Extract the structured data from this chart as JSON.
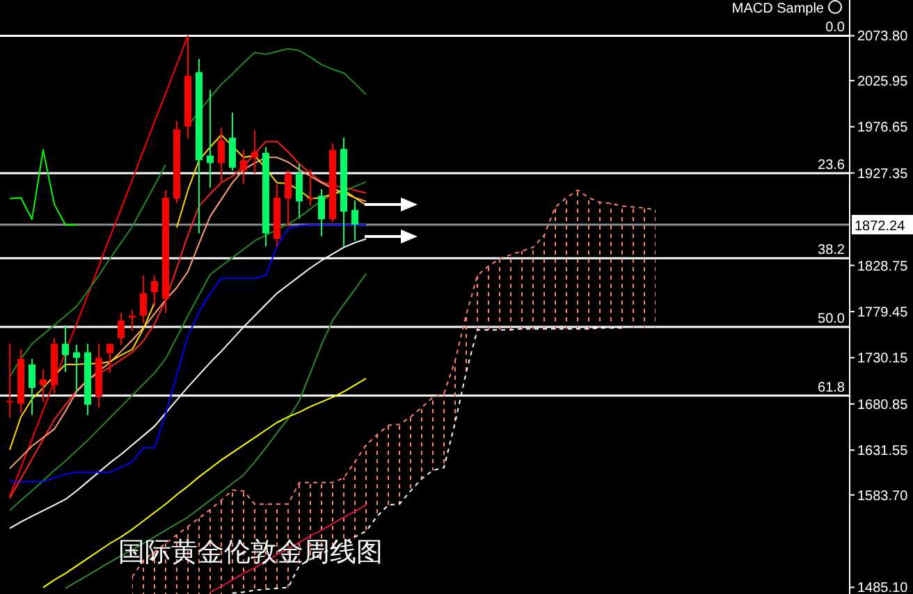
{
  "chart_data": {
    "type": "candlestick",
    "title": "国际黄金伦敦金周线图",
    "annotations": [
      "MACD Sample",
      {
        "text": "0.0",
        "y": 2073.8
      },
      {
        "text": "23.6",
        "y": 1927.1
      },
      {
        "text": "38.2",
        "y": 1836.3
      },
      {
        "text": "50.0",
        "y": 1763
      },
      {
        "text": "61.8",
        "y": 1689.7
      }
    ],
    "categories": [
      null,
      null,
      null,
      null,
      null,
      null,
      null,
      null,
      null,
      null,
      null,
      null,
      null,
      null,
      null,
      null,
      null,
      null,
      null,
      null,
      null,
      null,
      null,
      null,
      null,
      null,
      null,
      null,
      null,
      null,
      null,
      null,
      null,
      null,
      null,
      null,
      null,
      null,
      null,
      null,
      null,
      null,
      null,
      null,
      null,
      null,
      null,
      null,
      null,
      null,
      null,
      null,
      null,
      null,
      null,
      null,
      null,
      null,
      null,
      null,
      null,
      null,
      null,
      null,
      null,
      null,
      null,
      null,
      null,
      null,
      null,
      null,
      null,
      null,
      null,
      null
    ],
    "ohlc": [
      [
        1683,
        1745,
        1666,
        1684
      ],
      [
        1681,
        1739,
        1671,
        1729
      ],
      [
        1723,
        1729,
        1669,
        1698
      ],
      [
        1701,
        1718,
        1683,
        1707
      ],
      [
        1701,
        1751,
        1692,
        1745
      ],
      [
        1745,
        1765,
        1715,
        1733
      ],
      [
        1736,
        1744,
        1693,
        1730
      ],
      [
        1736,
        1745,
        1669,
        1680
      ],
      [
        1689,
        1745,
        1677,
        1730
      ],
      [
        1735,
        1745,
        1714,
        1745
      ],
      [
        1751,
        1778,
        1744,
        1770
      ],
      [
        1773,
        1781,
        1759,
        1775
      ],
      [
        1775,
        1818,
        1767,
        1799
      ],
      [
        1800,
        1818,
        1785,
        1812
      ],
      [
        1793,
        1909,
        1778,
        1901
      ],
      [
        1900,
        1983,
        1895,
        1974
      ],
      [
        1977,
        2073.8,
        1964,
        2031
      ],
      [
        2035,
        2049,
        1863,
        1941
      ],
      [
        1946,
        2016,
        1912,
        1938
      ],
      [
        1938,
        1976,
        1916,
        1962
      ],
      [
        1965,
        1992,
        1930,
        1933
      ],
      [
        1930,
        1952,
        1916,
        1941
      ],
      [
        1944,
        1973,
        1927,
        1950
      ],
      [
        1949,
        1955,
        1849,
        1863
      ],
      [
        1857,
        1915,
        1849,
        1901
      ],
      [
        1900,
        1931,
        1870,
        1927
      ],
      [
        1927,
        1937,
        1879,
        1897
      ],
      [
        1900,
        1931,
        1892,
        1901
      ],
      [
        1903,
        1910,
        1860,
        1878
      ],
      [
        1878,
        1959,
        1875,
        1952
      ],
      [
        1953,
        1965,
        1849,
        1886
      ],
      [
        1888,
        1898,
        1855,
        1872.24
      ],
      null,
      null,
      null,
      null,
      null,
      null,
      null,
      null,
      null,
      null,
      null,
      null,
      null,
      null,
      null,
      null,
      null,
      null,
      null,
      null,
      null,
      null,
      null,
      null,
      null,
      null,
      null,
      null,
      null,
      null,
      null,
      null,
      null,
      null,
      null,
      null,
      null,
      null,
      null,
      null,
      null,
      null,
      null,
      null
    ],
    "colors": [
      "#ff0000",
      "#ff0000",
      "#00ff66",
      "#ff0000",
      "#ff0000",
      "#00ff66",
      "#00ff66",
      "#00ff66",
      "#ff0000",
      "#ff0000",
      "#ff0000",
      "#ff0000",
      "#ff0000",
      "#ff0000",
      "#ff0000",
      "#ff0000",
      "#ff0000",
      "#00ff66",
      "#00ff66",
      "#ff0000",
      "#00ff66",
      "#ff0000",
      "#ff0000",
      "#00ff66",
      "#ff0000",
      "#ff0000",
      "#00ff66",
      "#ff0000",
      "#00ff66",
      "#ff0000",
      "#00ff66",
      "#00ff66",
      null,
      null,
      null,
      null,
      null,
      null,
      null,
      null,
      null,
      null,
      null,
      null,
      null,
      null,
      null,
      null,
      null,
      null,
      null,
      null,
      null,
      null,
      null,
      null,
      null,
      null,
      null,
      null,
      null,
      null,
      null,
      null,
      null,
      null,
      null,
      null,
      null,
      null,
      null,
      null,
      null,
      null,
      null,
      null
    ],
    "series": [
      {
        "type": "line",
        "color": "#fa8072",
        "line_style": "dashed",
        "values": [
          null,
          null,
          null,
          null,
          null,
          null,
          null,
          null,
          null,
          null,
          null,
          1496,
          1514,
          1523,
          1532,
          1541,
          1550,
          1559,
          1568,
          1578,
          1589,
          1588,
          1574,
          1574,
          1574,
          1574,
          1597,
          1597,
          1597,
          1597,
          1602,
          1619,
          1637,
          1648,
          1658,
          1659,
          1667,
          1677,
          1688,
          1692,
          1727,
          1776,
          1818,
          1828,
          1836,
          1840,
          1844,
          1848,
          1861,
          1891,
          1901,
          1909,
          1901,
          1896,
          1895,
          1892,
          1891,
          1890,
          1888,
          null,
          null,
          null,
          null,
          null,
          null,
          null,
          null,
          null,
          null,
          null,
          null,
          null,
          null,
          null,
          null,
          null
        ],
        "upper": [
          null,
          null,
          null,
          null,
          null,
          null,
          null,
          null,
          null,
          null,
          null,
          1496,
          1514,
          1523,
          1532,
          1541,
          1550,
          1559,
          1568,
          1578,
          1589,
          1588,
          1574,
          1574,
          1574,
          1574,
          1597,
          1597,
          1597,
          1597,
          1602,
          1619,
          1637,
          1648,
          1658,
          1659,
          1667,
          1677,
          1688,
          1692,
          1727,
          1776,
          1818,
          1828,
          1836,
          1840,
          1844,
          1848,
          1861,
          1891,
          1901,
          1909,
          1901,
          1896,
          1895,
          1892,
          1891,
          1890,
          1888,
          null,
          null,
          null,
          null,
          null,
          null,
          null,
          null,
          null,
          null,
          null,
          null,
          null,
          null,
          null,
          null,
          null
        ],
        "lower": [
          null,
          null,
          null,
          null,
          null,
          null,
          null,
          null,
          null,
          null,
          null,
          1478,
          1478,
          1478,
          1478,
          1478,
          1478,
          1478,
          1478,
          1478,
          1479,
          1480,
          1482,
          1483,
          1484,
          1485,
          1508,
          1515,
          1521,
          1527,
          1533,
          1539,
          1545,
          1561,
          1573,
          1574,
          1588,
          1601,
          1610,
          1613,
          1661,
          1715,
          1760,
          1760,
          1760,
          1760,
          1761,
          1761,
          1761,
          1761,
          1761,
          1761,
          1761,
          1762,
          1762,
          1762,
          1762,
          1762,
          1762,
          null,
          null,
          null,
          null,
          null,
          null,
          null,
          null,
          null,
          null,
          null,
          null,
          null,
          null,
          null,
          null,
          null
        ]
      },
      {
        "type": "line",
        "color": "#ffffff",
        "line_style": "dashed",
        "values": [
          null,
          null,
          null,
          null,
          null,
          null,
          null,
          null,
          null,
          null,
          null,
          null,
          null,
          null,
          null,
          null,
          null,
          null,
          null,
          null,
          1479,
          1480,
          1482,
          1483,
          1484,
          1485,
          1508,
          1515,
          1521,
          1527,
          1533,
          1539,
          1545,
          1561,
          1573,
          1574,
          1588,
          1601,
          1610,
          1613,
          1661,
          1715,
          1760,
          1760,
          1760,
          1760,
          1761,
          1761,
          1761,
          1761,
          1761,
          1761,
          1761,
          1762,
          1762,
          1762,
          null,
          null,
          null,
          null,
          null,
          null,
          null,
          null,
          null,
          null,
          null,
          null,
          null,
          null,
          null,
          null,
          null,
          null,
          null,
          null
        ]
      },
      {
        "type": "line",
        "color": "#ff0000",
        "values": [
          1582,
          1613,
          1643,
          1674,
          1705,
          1736,
          1766,
          1797,
          1828,
          1859,
          1889,
          1920,
          1951,
          1982,
          2012,
          2043,
          2074,
          null,
          null,
          null,
          null,
          null,
          null,
          null,
          null,
          null,
          null,
          null,
          null,
          null,
          null,
          null,
          null,
          null,
          null,
          null,
          null,
          null,
          null,
          null,
          null,
          null,
          null,
          null,
          null,
          null,
          null,
          null,
          null,
          null,
          null,
          null,
          null,
          null,
          null,
          null,
          null,
          null,
          null,
          null,
          null,
          null,
          null,
          null,
          null,
          null,
          null,
          null,
          null,
          null,
          null,
          null,
          null,
          null,
          null,
          null
        ]
      },
      {
        "type": "line",
        "color": "#dc143c",
        "values": [
          null,
          null,
          null,
          null,
          null,
          null,
          null,
          null,
          null,
          null,
          null,
          null,
          null,
          null,
          null,
          null,
          null,
          null,
          1480,
          1486,
          1493,
          1500,
          1506,
          1513,
          1520,
          1526,
          1533,
          1540,
          1546,
          1553,
          1560,
          1566,
          1573,
          null,
          null,
          null,
          null,
          null,
          null,
          null,
          null,
          null,
          null,
          null,
          null,
          null,
          null,
          null,
          null,
          null,
          null,
          null,
          null,
          null,
          null,
          null,
          null,
          null,
          null,
          null,
          null,
          null,
          null,
          null,
          null,
          null,
          null,
          null,
          null,
          null,
          null,
          null,
          null,
          null,
          null,
          null
        ]
      },
      {
        "type": "line",
        "color": "#228b22",
        "values": [
          1710,
          1729,
          1745,
          1755,
          1765,
          1775,
          1785,
          1801,
          1818,
          1836,
          1853,
          1870,
          1892,
          1914,
          1936,
          null,
          1978,
          1993,
          2008,
          2022,
          2033,
          2045,
          2056,
          2054,
          2057,
          2060,
          2058,
          2051,
          2043,
          2038,
          2034,
          2023,
          2011,
          null,
          null,
          null,
          null,
          null,
          null,
          null,
          null,
          null,
          null,
          null,
          null,
          null,
          null,
          null,
          null,
          null,
          null,
          null,
          null,
          null,
          null,
          null,
          null,
          null,
          null,
          null,
          null,
          null,
          null,
          null,
          null,
          null,
          null,
          null,
          null,
          null,
          null,
          null,
          null,
          null,
          null,
          null
        ]
      },
      {
        "type": "line",
        "color": "#228b22",
        "values": [
          1567,
          1578,
          1588,
          1599,
          1610,
          1620,
          1631,
          1642,
          1654,
          1666,
          1678,
          1690,
          1702,
          1714,
          1729,
          1752,
          1775,
          1797,
          1819,
          1828,
          1837,
          1846,
          1855,
          1861,
          1867,
          1873,
          1880,
          1889,
          1898,
          1904,
          1908,
          1913,
          1918,
          null,
          null,
          null,
          null,
          null,
          null,
          null,
          null,
          null,
          null,
          null,
          null,
          null,
          null,
          null,
          null,
          null,
          null,
          null,
          null,
          null,
          null,
          null,
          null,
          null,
          null,
          null,
          null,
          null,
          null,
          null,
          null,
          null,
          null,
          null,
          null,
          null,
          null,
          null,
          null,
          null,
          null,
          null
        ]
      },
      {
        "type": "line",
        "color": "#2e8b2e",
        "values": [
          null,
          null,
          null,
          null,
          null,
          1484,
          1491,
          1498,
          1505,
          1512,
          1519,
          1525,
          1532,
          1539,
          1546,
          1553,
          1560,
          1569,
          1578,
          1587,
          1596,
          1605,
          1619,
          1634,
          1650,
          1665,
          1684,
          1714,
          1744,
          1770,
          1787,
          1803,
          1820,
          null,
          null,
          null,
          null,
          null,
          null,
          null,
          null,
          null,
          null,
          null,
          null,
          null,
          null,
          null,
          null,
          null,
          null,
          null,
          null,
          null,
          null,
          null,
          null,
          null,
          null,
          null,
          null,
          null,
          null,
          null,
          null,
          null,
          null,
          null,
          null,
          null,
          null,
          null,
          null,
          null,
          null,
          null
        ]
      },
      {
        "type": "line",
        "color": "#ffff00",
        "values": [
          null,
          null,
          null,
          1485,
          1493,
          1500,
          1508,
          1516,
          1524,
          1532,
          1539,
          1547,
          1556,
          1565,
          1574,
          1584,
          1593,
          1603,
          1612,
          1621,
          1629,
          1637,
          1645,
          1653,
          1661,
          1667,
          1672,
          1678,
          1683,
          1688,
          1694,
          1701,
          1708,
          null,
          null,
          null,
          null,
          null,
          null,
          null,
          null,
          null,
          null,
          null,
          null,
          null,
          null,
          null,
          null,
          null,
          null,
          null,
          null,
          null,
          null,
          null,
          null,
          null,
          null,
          null,
          null,
          null,
          null,
          null,
          null,
          null,
          null,
          null,
          null,
          null,
          null,
          null,
          null,
          null,
          null,
          null
        ]
      },
      {
        "type": "line",
        "color": "#ffffff",
        "values": [
          1548,
          1555,
          1561,
          1567,
          1573,
          1579,
          1588,
          1598,
          1608,
          1618,
          1627,
          1637,
          1647,
          1657,
          1671,
          1685,
          1699,
          1712,
          1725,
          1737,
          1750,
          1763,
          1775,
          1787,
          1799,
          1808,
          1817,
          1826,
          1834,
          1841,
          1848,
          1853,
          1857,
          null,
          null,
          null,
          null,
          null,
          null,
          null,
          null,
          null,
          null,
          null,
          null,
          null,
          null,
          null,
          null,
          null,
          null,
          null,
          null,
          null,
          null,
          null,
          null,
          null,
          null,
          null,
          null,
          null,
          null,
          null,
          null,
          null,
          null,
          null,
          null,
          null,
          null,
          null,
          null,
          null,
          null,
          null
        ]
      },
      {
        "type": "line",
        "color": "#0000ff",
        "values": [
          1598,
          1598,
          1598,
          1598,
          1602,
          1606,
          1608,
          1608,
          1608,
          1608,
          1613,
          1619,
          1634,
          1634,
          1670,
          1712,
          1753,
          1779,
          1799,
          1815,
          1815,
          1815,
          1815,
          1818,
          1849,
          1868,
          1871,
          1872,
          1872,
          1872,
          1872,
          1872,
          1872,
          null,
          null,
          null,
          null,
          null,
          null,
          null,
          null,
          null,
          null,
          null,
          null,
          null,
          null,
          null,
          null,
          null,
          null,
          null,
          null,
          null,
          null,
          null,
          null,
          null,
          null,
          null,
          null,
          null,
          null,
          null,
          null,
          null,
          null,
          null,
          null,
          null,
          null,
          null,
          null,
          null,
          null,
          null
        ]
      },
      {
        "type": "line",
        "color": "#ff2020",
        "values": [
          1580,
          1601,
          1622,
          1643,
          1664,
          1680,
          1695,
          1707,
          1713,
          1720,
          1728,
          1736,
          1748,
          1766,
          1792,
          1826,
          1861,
          1892,
          1905,
          1917,
          1924,
          1934,
          1948,
          1961,
          1961,
          1950,
          1937,
          1927,
          1918,
          1914,
          1912,
          1909,
          1906,
          null,
          null,
          null,
          null,
          null,
          null,
          null,
          null,
          null,
          null,
          null,
          null,
          null,
          null,
          null,
          null,
          null,
          null,
          null,
          null,
          null,
          null,
          null,
          null,
          null,
          null,
          null,
          null,
          null,
          null,
          null,
          null,
          null,
          null,
          null,
          null,
          null,
          null,
          null,
          null,
          null,
          null,
          null
        ]
      },
      {
        "type": "line",
        "color": "#ffa07a",
        "values": [
          1612,
          1624,
          1636,
          1645,
          1654,
          1673,
          1694,
          1706,
          1716,
          1725,
          1737,
          1749,
          1762,
          1777,
          1792,
          1805,
          1822,
          1852,
          1881,
          1899,
          1917,
          1931,
          1938,
          1944,
          1944,
          1939,
          1931,
          1924,
          1917,
          1911,
          1906,
          1901,
          1897,
          null,
          null,
          null,
          null,
          null,
          null,
          null,
          null,
          null,
          null,
          null,
          null,
          null,
          null,
          null,
          null,
          null,
          null,
          null,
          null,
          null,
          null,
          null,
          null,
          null,
          null,
          null,
          null,
          null,
          null,
          null,
          null,
          null,
          null,
          null,
          null,
          null,
          null,
          null,
          null,
          null,
          null,
          null
        ]
      },
      {
        "type": "line",
        "color": "#ffd700",
        "values": [
          1632,
          1667,
          1686,
          1698,
          1711,
          1723,
          1723,
          1724,
          1724,
          1726,
          1733,
          1739,
          1761,
          1789,
          null,
          1869,
          1909,
          1941,
          1955,
          1968,
          1956,
          1944,
          1946,
          1932,
          1917,
          1916,
          1909,
          1900,
          1901,
          1905,
          1909,
          1901,
          1893,
          null,
          null,
          null,
          null,
          null,
          null,
          null,
          null,
          null,
          null,
          null,
          null,
          null,
          null,
          null,
          null,
          null,
          null,
          null,
          null,
          null,
          null,
          null,
          null,
          null,
          null,
          null,
          null,
          null,
          null,
          null,
          null,
          null,
          null,
          null,
          null,
          null,
          null,
          null,
          null,
          null,
          null,
          null
        ]
      },
      {
        "type": "line",
        "color": "#00ff00",
        "values": [
          1900,
          1901,
          1878,
          1952,
          1894,
          1872,
          1872,
          null,
          null,
          null,
          null,
          null,
          null,
          null,
          null,
          null,
          null,
          null,
          null,
          null,
          null,
          null,
          null,
          null,
          null,
          null,
          null,
          null,
          null,
          null,
          null,
          null,
          null,
          null,
          null,
          null,
          null,
          null,
          null,
          null,
          null,
          null,
          null,
          null,
          null,
          null,
          null,
          null,
          null,
          null,
          null,
          null,
          null,
          null,
          null,
          null,
          null,
          null,
          null,
          null,
          null,
          null,
          null,
          null,
          null,
          null,
          null,
          null,
          null,
          null,
          null,
          null,
          null,
          null,
          null,
          null
        ]
      }
    ],
    "ref_lines": [
      {
        "axis": "y",
        "value": 2073.8,
        "color": "#ffffff"
      },
      {
        "axis": "y",
        "value": 1927.1,
        "color": "#ffffff"
      },
      {
        "axis": "y",
        "value": 1836.3,
        "color": "#ffffff"
      },
      {
        "axis": "y",
        "value": 1763,
        "color": "#ffffff"
      },
      {
        "axis": "y",
        "value": 1689.7,
        "color": "#ffffff"
      },
      {
        "axis": "y",
        "value": 1872.24,
        "label": "1872.24",
        "color": "#8a8f99"
      }
    ],
    "ylim": [
      1478,
      2112
    ],
    "yticks": [
      {
        "value": 2073.8,
        "label": "2073.80"
      },
      {
        "value": 2025.95,
        "label": "2025.95"
      },
      {
        "value": 1976.65,
        "label": "1976.65"
      },
      {
        "value": 1927.35,
        "label": "1927.35"
      },
      {
        "value": 1828.75,
        "label": "1828.75"
      },
      {
        "value": 1779.45,
        "label": "1779.45"
      },
      {
        "value": 1730.15,
        "label": "1730.15"
      },
      {
        "value": 1680.85,
        "label": "1680.85"
      },
      {
        "value": 1631.55,
        "label": "1631.55"
      },
      {
        "value": 1583.7,
        "label": "1583.70"
      },
      {
        "value": 1485.1,
        "label": "1485.10"
      }
    ]
  }
}
